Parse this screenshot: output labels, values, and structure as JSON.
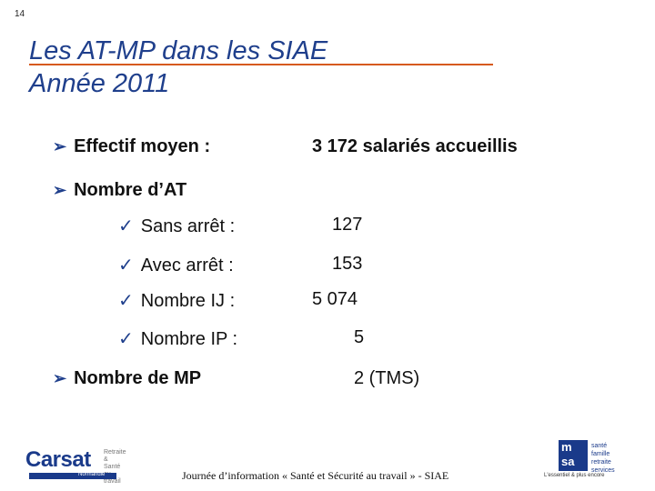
{
  "slide_number": "14",
  "title": {
    "line1": "Les AT-MP dans les SIAE",
    "line2": "Année 2011"
  },
  "effectif": {
    "label": "Effectif moyen :",
    "value": "3 172 salariés accueillis"
  },
  "nombre_at": {
    "label": "Nombre d’AT",
    "items": [
      {
        "label": "Sans arrêt :",
        "value": "127"
      },
      {
        "label": "Avec arrêt :",
        "value": "153"
      },
      {
        "label": "Nombre IJ :",
        "value": "5 074"
      },
      {
        "label": "Nombre IP :",
        "value": "5"
      }
    ]
  },
  "nombre_mp": {
    "label": "Nombre de MP",
    "value": "2 (TMS)"
  },
  "footer": "Journée d’information « Santé et Sécurité au travail » - SIAE",
  "logos": {
    "carsat": {
      "name": "Carsat",
      "sub": "Normandie",
      "side": [
        "Retraite",
        "& Santé",
        "au travail"
      ]
    },
    "msa": {
      "letters": [
        "m",
        "sa"
      ],
      "lines": [
        "santé",
        "famille",
        "retraite",
        "services"
      ],
      "tagline": "L'essentiel & plus encore"
    }
  },
  "colors": {
    "title": "#1f3f8c",
    "rule": "#d65a1e",
    "bullet": "#1f3f8c",
    "logo": "#1a3a8a"
  },
  "icons": {
    "arrow_bullet": "arrow-bullet-icon",
    "check_bullet": "check-bullet-icon"
  }
}
